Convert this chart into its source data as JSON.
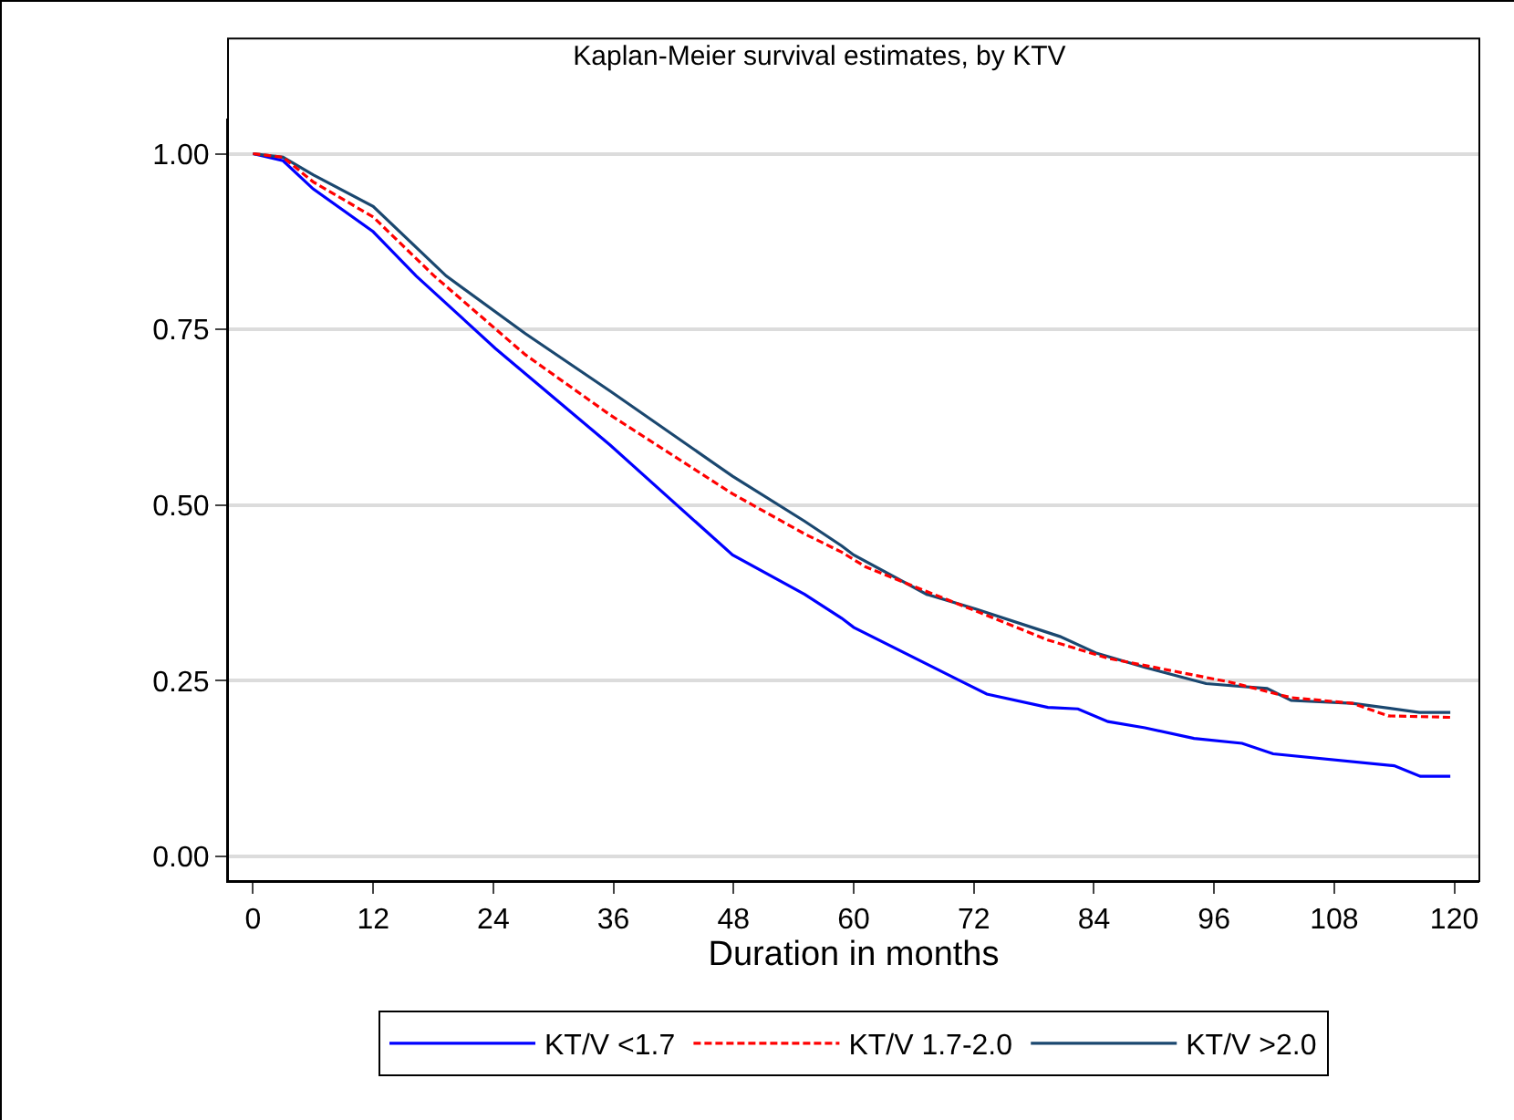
{
  "chart_data": {
    "type": "line",
    "title": "Kaplan-Meier survival estimates, by KTV",
    "xlabel": "Duration in months",
    "xlim": [
      -2.5,
      122.5
    ],
    "xticks": [
      0,
      12,
      24,
      36,
      48,
      60,
      72,
      84,
      96,
      108,
      120
    ],
    "ylim": [
      -0.035,
      1.05
    ],
    "yticks": [
      {
        "value": 0,
        "label": "0.00"
      },
      {
        "value": 0.25,
        "label": "0.25"
      },
      {
        "value": 0.5,
        "label": "0.50"
      },
      {
        "value": 0.75,
        "label": "0.75"
      },
      {
        "value": 1,
        "label": "1.00"
      }
    ],
    "grid": "y",
    "legend": "bottom",
    "series": [
      {
        "name": "KT/V <1.7",
        "color": "#0000ff",
        "line_style": "solid",
        "x": [
          0,
          3,
          6,
          12,
          16.3,
          24.2,
          35.7,
          47.9,
          55.1,
          58.8,
          60,
          70.9,
          73.3,
          79.4,
          82.4,
          85.4,
          89.1,
          94,
          98.8,
          101.9,
          114,
          116.6,
          119.6
        ],
        "values": [
          1,
          0.99,
          0.95,
          0.889,
          0.826,
          0.723,
          0.585,
          0.429,
          0.373,
          0.339,
          0.326,
          0.248,
          0.231,
          0.212,
          0.21,
          0.192,
          0.183,
          0.168,
          0.161,
          0.146,
          0.129,
          0.114,
          0.114
        ]
      },
      {
        "name": "KT/V 1.7-2.0",
        "color": "#ff0000",
        "line_style": "dashed",
        "x": [
          0,
          3,
          6,
          12,
          18.1,
          27.2,
          35.7,
          47.9,
          55.1,
          58.8,
          61.2,
          67.3,
          73.3,
          79.4,
          85.4,
          91.5,
          97.6,
          103.7,
          109.8,
          113.4,
          119.6
        ],
        "values": [
          1,
          0.995,
          0.96,
          0.91,
          0.826,
          0.714,
          0.628,
          0.516,
          0.459,
          0.433,
          0.412,
          0.377,
          0.343,
          0.308,
          0.282,
          0.265,
          0.248,
          0.226,
          0.218,
          0.2,
          0.198
        ]
      },
      {
        "name": "KT/V >2.0",
        "color": "#1a476f",
        "line_style": "solid",
        "x": [
          0,
          3,
          6,
          12,
          19.3,
          27.2,
          35.7,
          47.9,
          55.1,
          58.8,
          60,
          67.3,
          72.2,
          80.6,
          84.3,
          89.1,
          95.2,
          101.3,
          103.7,
          109.8,
          116.5,
          119.6
        ],
        "values": [
          1,
          0.995,
          0.97,
          0.925,
          0.826,
          0.744,
          0.662,
          0.541,
          0.477,
          0.442,
          0.429,
          0.373,
          0.352,
          0.313,
          0.289,
          0.269,
          0.246,
          0.239,
          0.222,
          0.218,
          0.205,
          0.205
        ]
      }
    ]
  }
}
